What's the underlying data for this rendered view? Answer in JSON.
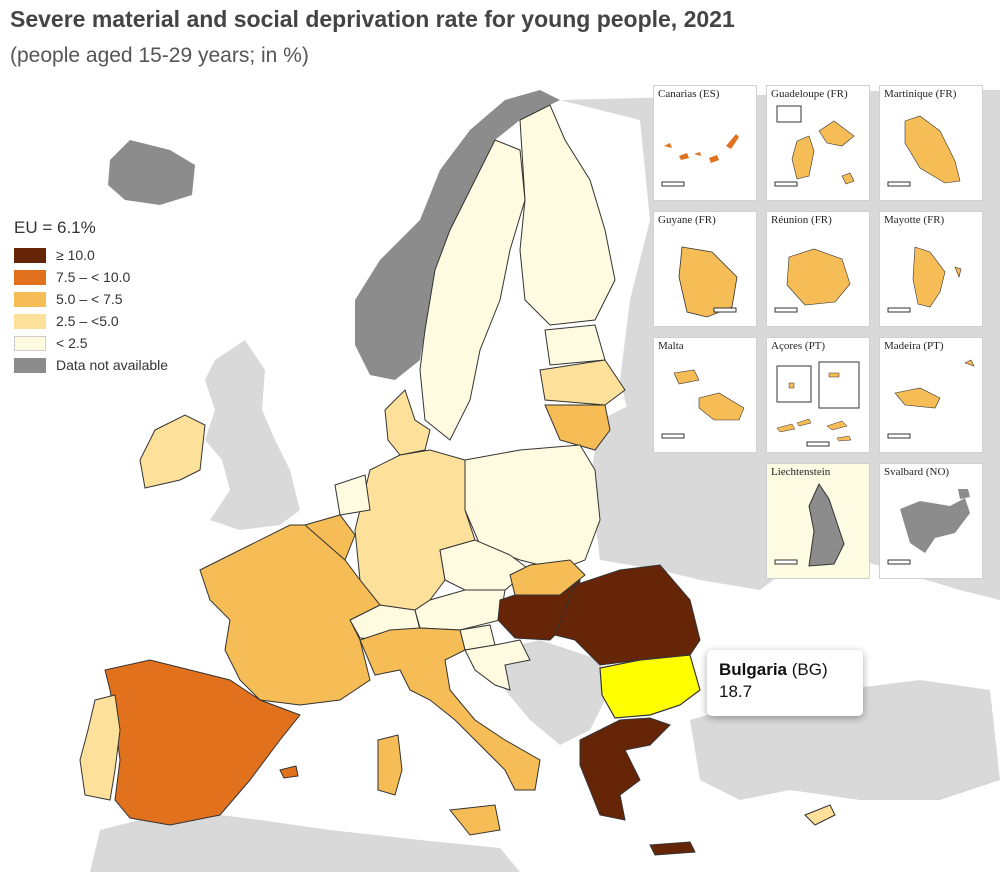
{
  "title": "Severe material and social deprivation rate for young people, 2021",
  "subtitle": "(people aged 15-29 years; in %)",
  "legend": {
    "eu_label": "EU = 6.1%",
    "items": [
      {
        "label": "≥ 10.0",
        "color": "#662506"
      },
      {
        "label": "7.5 – < 10.0",
        "color": "#e2711d"
      },
      {
        "label": "5.0 – < 7.5",
        "color": "#f6bc56"
      },
      {
        "label": "2.5 – <5.0",
        "color": "#fde09a"
      },
      {
        "label": "< 2.5",
        "color": "#fefbe0"
      },
      {
        "label": "Data not available",
        "color": "#8c8c8c"
      }
    ]
  },
  "colors": {
    "cat1": "#662506",
    "cat2": "#e2711d",
    "cat3": "#f6bc56",
    "cat4": "#fde09a",
    "cat5": "#fefbe0",
    "na": "#8c8c8c",
    "non_eu": "#d9d9d9",
    "highlight": "#ffff00"
  },
  "insets": [
    {
      "name": "Canarias (ES)",
      "scale": "0   100"
    },
    {
      "name": "Guadeloupe (FR)",
      "scale": "0   20"
    },
    {
      "name": "Martinique (FR)",
      "scale": "0   20"
    },
    {
      "name": "Guyane (FR)",
      "scale": "0   100"
    },
    {
      "name": "Réunion (FR)",
      "scale": "0   20"
    },
    {
      "name": "Mayotte (FR)",
      "scale": "0   10"
    },
    {
      "name": "Malta",
      "scale": "0   10"
    },
    {
      "name": "Açores (PT)",
      "scale": "0   50"
    },
    {
      "name": "Madeira (PT)",
      "scale": "0   20"
    },
    {
      "name": "Liechtenstein",
      "scale": "0   5"
    },
    {
      "name": "Svalbard (NO)",
      "scale": "0   100"
    }
  ],
  "tooltip": {
    "country": "Bulgaria",
    "code": "(BG)",
    "value": "18.7"
  }
}
